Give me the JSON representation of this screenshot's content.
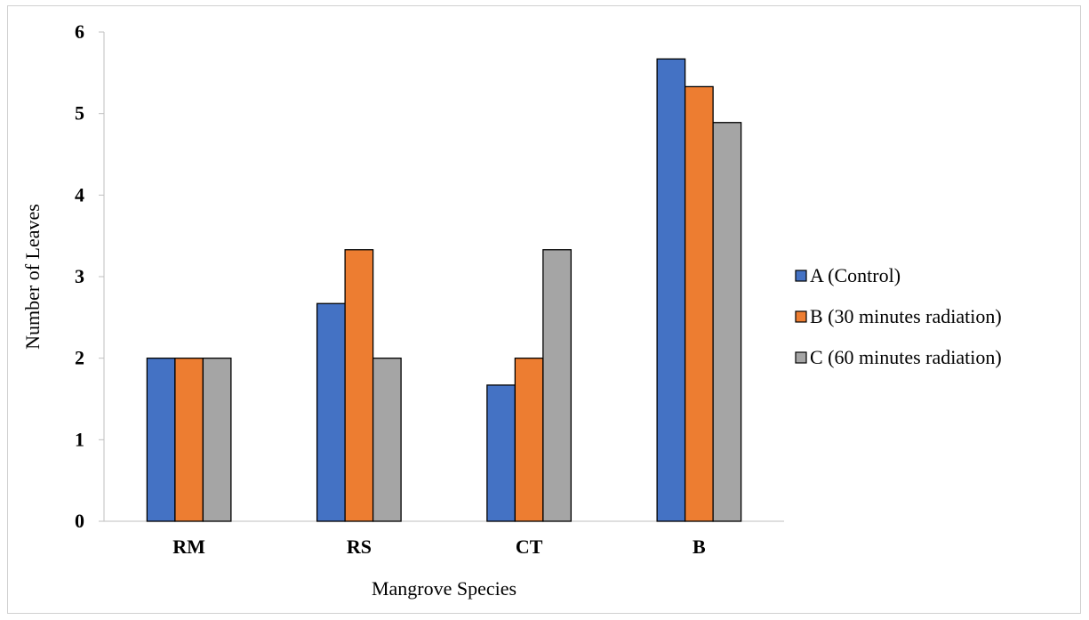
{
  "chart_data": {
    "type": "bar",
    "title": "",
    "categories": [
      "RM",
      "RS",
      "CT",
      "B"
    ],
    "series": [
      {
        "name": "A (Control)",
        "color": "#4472C4",
        "values": [
          2,
          2.67,
          1.67,
          5.67
        ]
      },
      {
        "name": "B (30 minutes radiation)",
        "color": "#ED7D31",
        "values": [
          2,
          3.33,
          2,
          5.33
        ]
      },
      {
        "name": "C (60 minutes radiation)",
        "color": "#A5A5A5",
        "values": [
          2,
          2,
          3.33,
          4.89
        ]
      }
    ],
    "xlabel": "Mangrove Species",
    "ylabel": "Number of Leaves",
    "ylim": [
      0,
      6
    ],
    "yticks": [
      "0",
      "1",
      "2",
      "3",
      "4",
      "5",
      "6"
    ],
    "grid": false,
    "legend_position": "right"
  }
}
